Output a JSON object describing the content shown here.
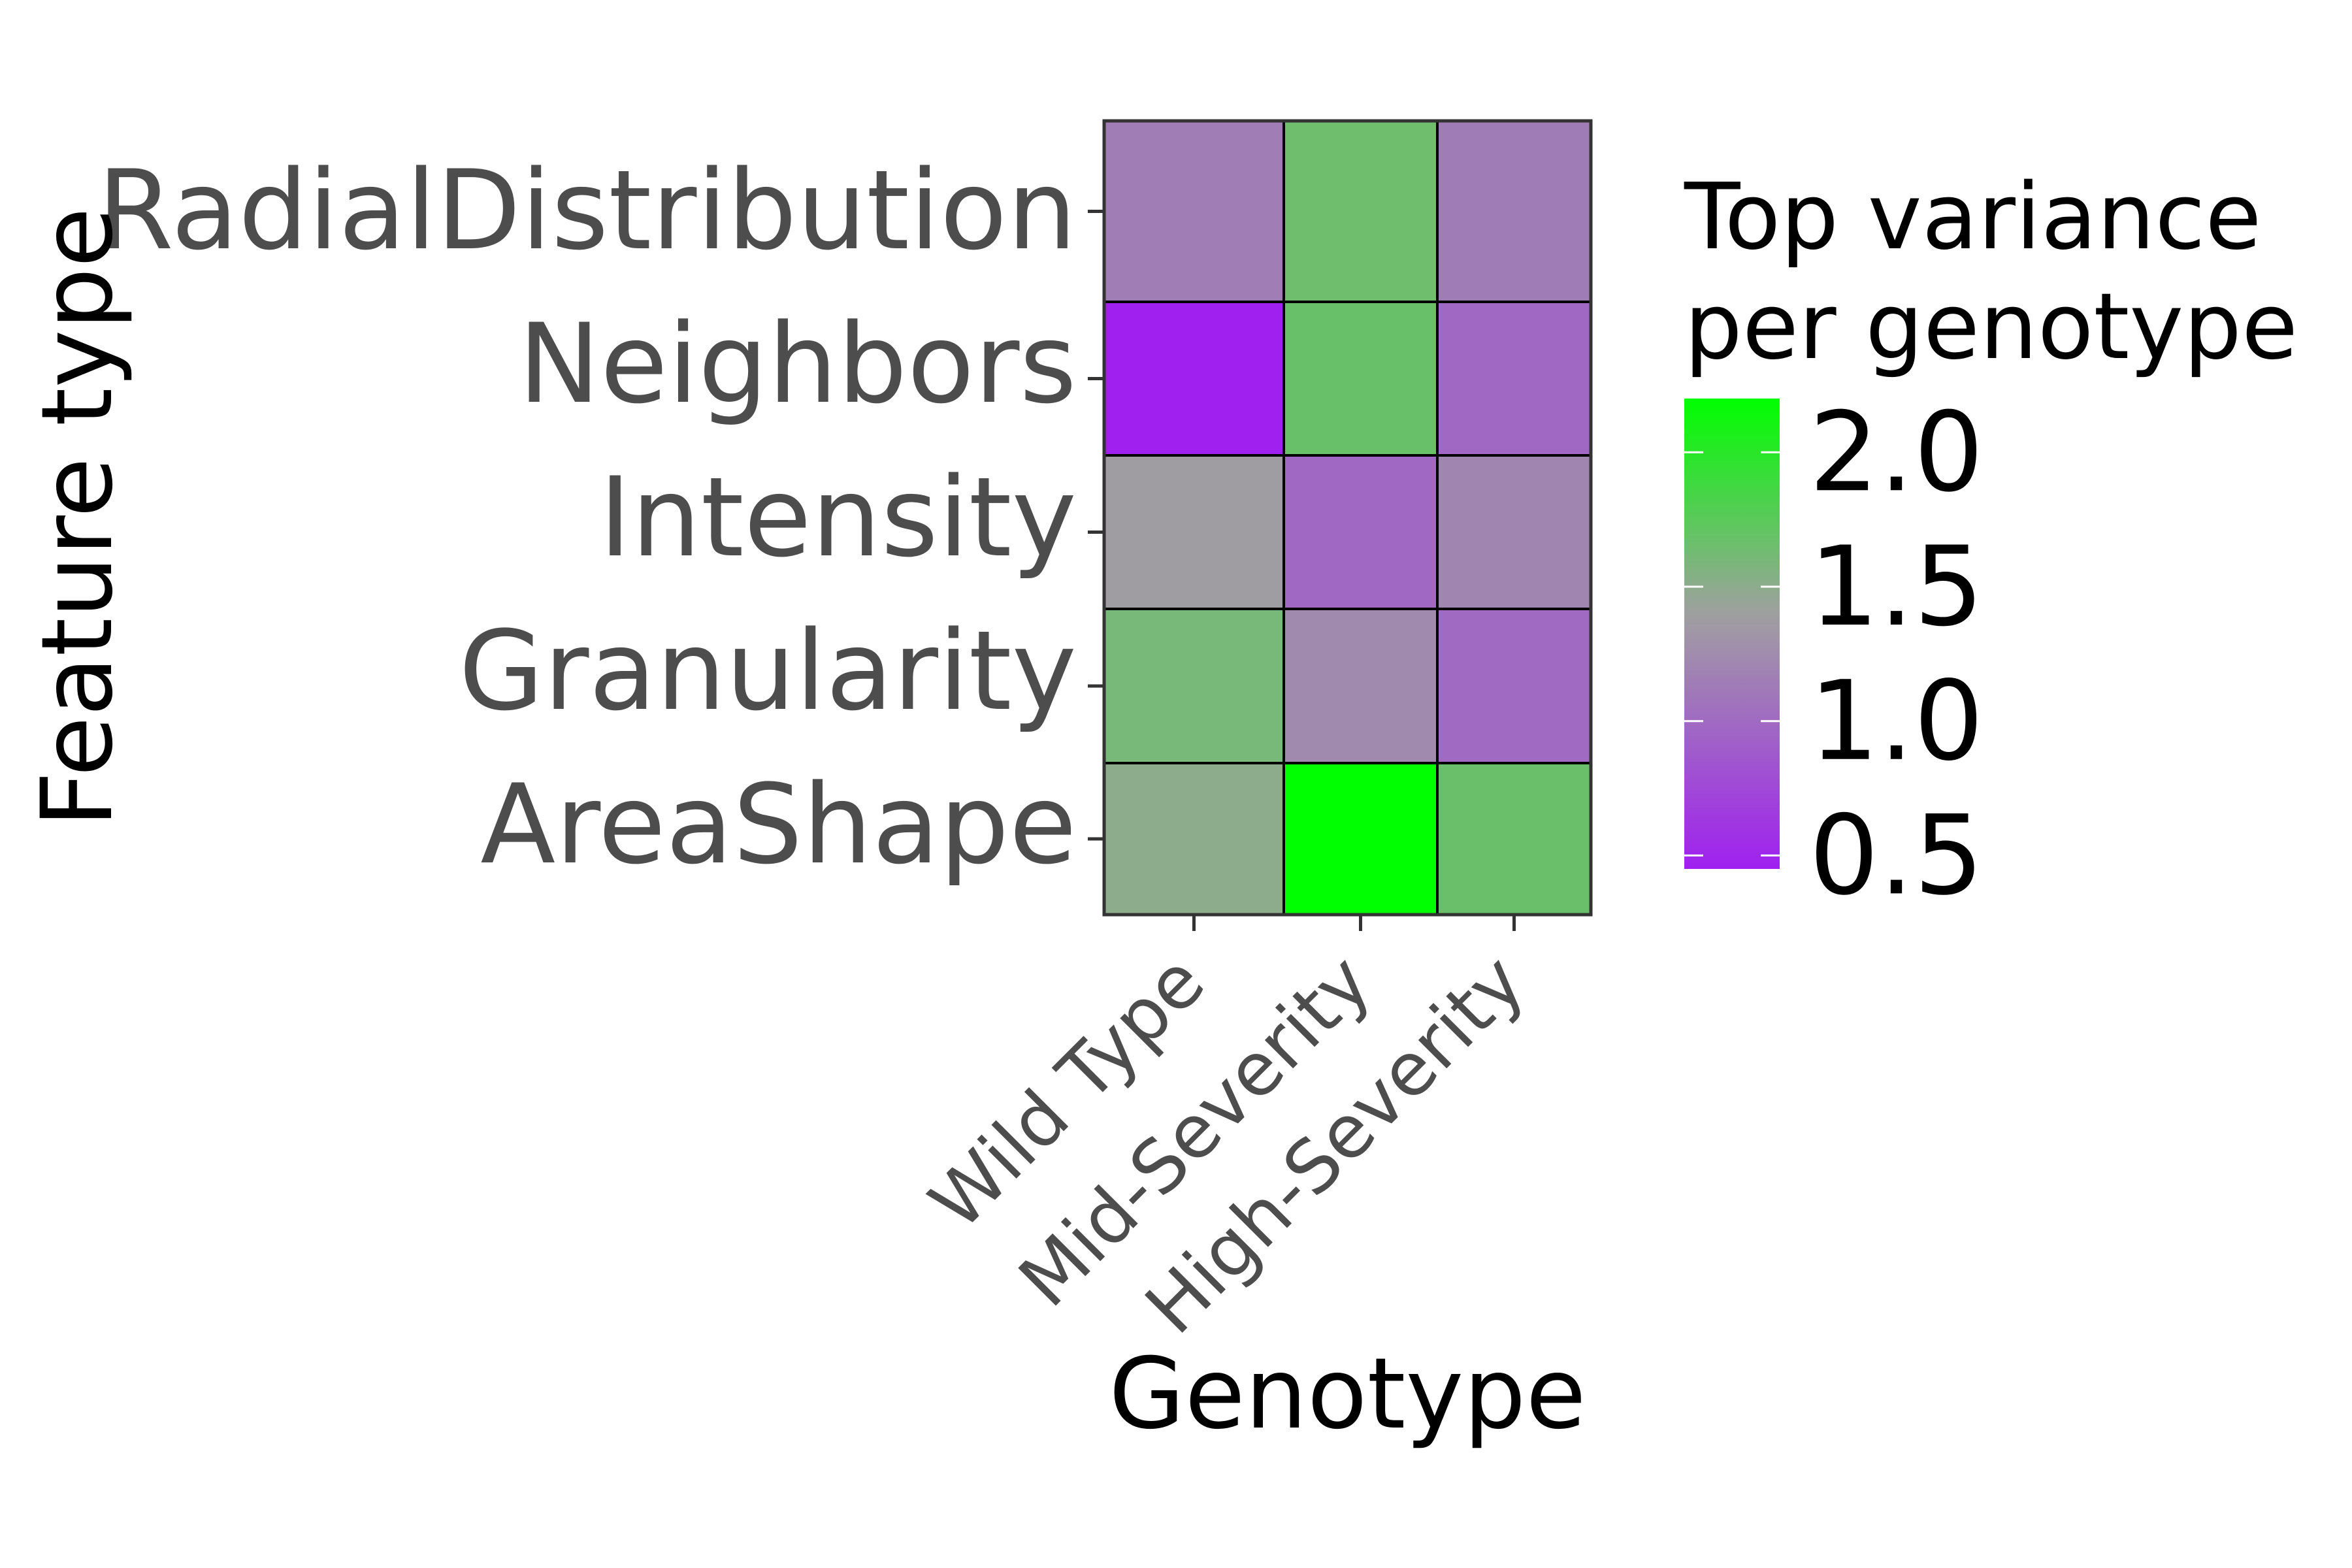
{
  "chart_data": {
    "type": "heatmap",
    "xlabel": "Genotype",
    "ylabel": "Feature type",
    "x_categories": [
      "Wild Type",
      "Mid-Severity",
      "High-Severity"
    ],
    "y_categories": [
      "RadialDistribution",
      "Neighbors",
      "Intensity",
      "Granularity",
      "AreaShape"
    ],
    "values": [
      [
        1.15,
        1.65,
        1.13
      ],
      [
        0.45,
        1.68,
        0.98
      ],
      [
        1.38,
        0.98,
        1.2
      ],
      [
        1.6,
        1.24,
        1.0
      ],
      [
        1.5,
        2.2,
        1.67
      ]
    ],
    "legend": {
      "title_lines": [
        "Top variance",
        "per genotype"
      ],
      "range": [
        0.45,
        2.2
      ],
      "ticks": [
        0.5,
        1.0,
        1.5,
        2.0
      ],
      "tick_labels": [
        "0.5",
        "1.0",
        "1.5",
        "2.0"
      ],
      "placement": "right"
    },
    "colors": {
      "low": "#a020f0",
      "mid": "#a0a0a0",
      "high": "#00ff00",
      "midpoint": 1.4
    },
    "grid": false
  }
}
